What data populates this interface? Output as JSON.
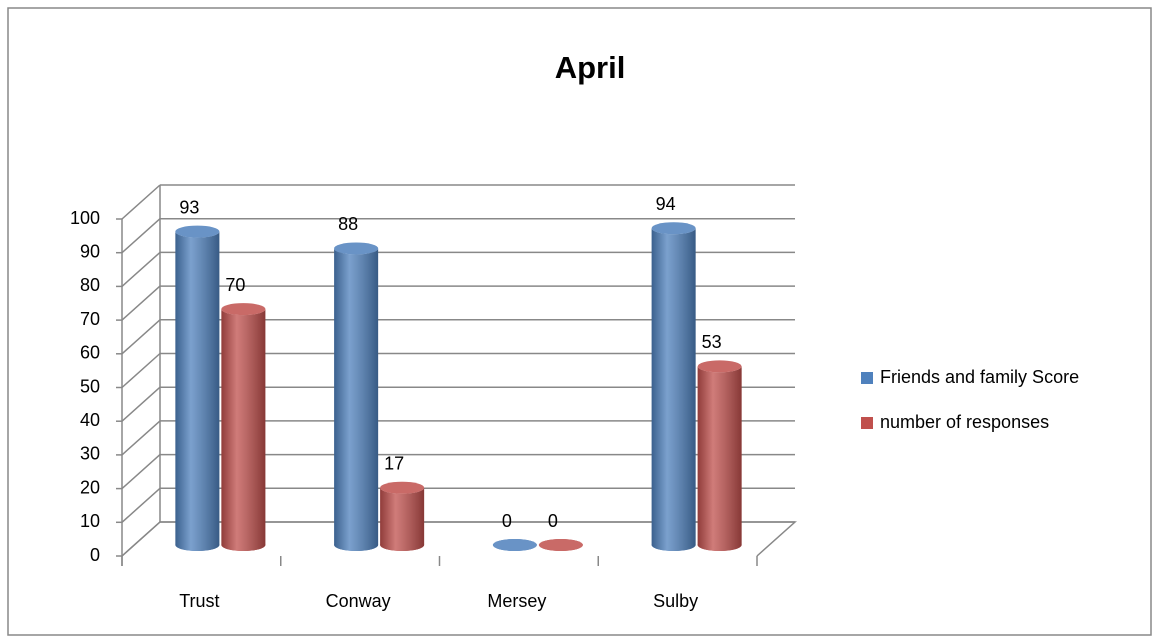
{
  "chart_data": {
    "type": "bar",
    "title": "April",
    "categories": [
      "Trust",
      "Conway",
      "Mersey",
      "Sulby"
    ],
    "series": [
      {
        "name": "Friends and family Score",
        "color": "#4f81bd",
        "values": [
          93,
          88,
          0,
          94
        ]
      },
      {
        "name": "number of responses",
        "color": "#c0504d",
        "values": [
          70,
          17,
          0,
          53
        ]
      }
    ],
    "ylim": [
      0,
      100
    ],
    "yticks": [
      0,
      10,
      20,
      30,
      40,
      50,
      60,
      70,
      80,
      90,
      100
    ],
    "grid": true,
    "legend": "right"
  }
}
